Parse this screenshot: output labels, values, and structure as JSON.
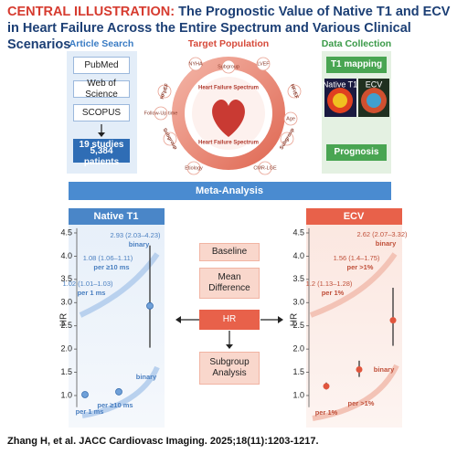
{
  "header": {
    "label": "CENTRAL ILLUSTRATION:",
    "title": "The Prognostic Value of Native T1 and ECV in Heart Failure Across the Entire Spectrum and Various Clinical Scenarios"
  },
  "article_search": {
    "title": "Article Search",
    "databases": [
      "PubMed",
      "Web of Science",
      "SCOPUS"
    ],
    "result": [
      "19 studies",
      "5,384 patients"
    ]
  },
  "target_population": {
    "title": "Target Population",
    "center": [
      "Heart Failure Spectrum",
      "Heart Failure Spectrum"
    ],
    "labels": [
      "NYHA",
      "Subgroup",
      "LVEF",
      "HFrEF",
      "Age",
      "Subgroup",
      "CMR-LGE",
      "Etiology",
      "Subgroup",
      "Follow-Up time",
      "HFpEF"
    ]
  },
  "data_collection": {
    "title": "Data Collection",
    "mapping": "T1 mapping",
    "images": [
      "Native T1",
      "ECV"
    ],
    "outcome": "Prognosis"
  },
  "meta_analysis": {
    "title": "Meta-Analysis",
    "steps": [
      "Baseline",
      "Mean Difference",
      "HR",
      "Subgroup Analysis"
    ]
  },
  "chart_data": [
    {
      "type": "scatter",
      "title": "Native T1",
      "y_label": "HR",
      "color": "#6fa0d8",
      "categories": [
        "per 1 ms",
        "per ≥10 ms",
        "binary"
      ],
      "values": [
        1.02,
        1.08,
        2.93
      ],
      "ci_low": [
        1.01,
        1.06,
        2.03
      ],
      "ci_high": [
        1.03,
        1.11,
        4.23
      ],
      "value_labels": [
        "1.02 (1.01–1.03)",
        "1.08 (1.06–1.11)",
        "2.93 (2.03–4.23)"
      ],
      "ylim": [
        0.75,
        4.6
      ],
      "yticks": [
        {
          "value": 1,
          "label": "1.0"
        },
        1.5,
        {
          "value": 2,
          "label": "2.0"
        },
        2.5,
        {
          "value": 3,
          "label": "3.0"
        },
        3.5,
        {
          "value": 4,
          "label": "4.0"
        },
        4.5
      ]
    },
    {
      "type": "scatter",
      "title": "ECV",
      "y_label": "HR",
      "color": "#e0553d",
      "categories": [
        "per 1%",
        "per >1%",
        "binary"
      ],
      "values": [
        1.2,
        1.56,
        2.62
      ],
      "ci_low": [
        1.13,
        1.4,
        2.07
      ],
      "ci_high": [
        1.28,
        1.75,
        3.32
      ],
      "value_labels": [
        "1.2 (1.13–1.28)",
        "1.56 (1.4–1.75)",
        "2.62 (2.07–3.32)"
      ],
      "ylim": [
        0.75,
        4.6
      ],
      "yticks": [
        {
          "value": 1,
          "label": "1.0"
        },
        1.5,
        {
          "value": 2,
          "label": "2.0"
        },
        2.5,
        {
          "value": 3,
          "label": "3.0"
        },
        3.5,
        {
          "value": 4,
          "label": "4.0"
        },
        4.5
      ]
    }
  ],
  "footer": "Zhang H, et al. JACC Cardiovasc Imaging. 2025;18(11):1203-1217."
}
